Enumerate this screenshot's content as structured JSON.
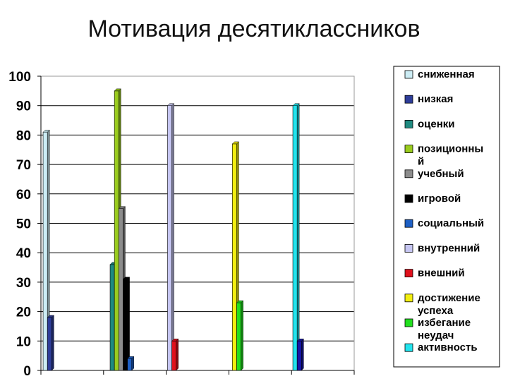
{
  "chart_data": {
    "type": "bar",
    "title": "Мотивация десятиклассников",
    "xlabel": "",
    "ylabel": "",
    "ylim": [
      0,
      100
    ],
    "yticks": [
      0,
      10,
      20,
      30,
      40,
      50,
      60,
      70,
      80,
      90,
      100
    ],
    "grid": true,
    "legend_position": "right",
    "categories": [
      "",
      "",
      "",
      "",
      ""
    ],
    "series": [
      {
        "name": "сниженная",
        "color": "#ccecf4",
        "values": [
          81,
          null,
          null,
          null,
          null
        ]
      },
      {
        "name": "низкая",
        "color": "#2e3d99",
        "values": [
          18,
          null,
          null,
          null,
          null
        ]
      },
      {
        "name": "оценки",
        "color": "#1f8a80",
        "values": [
          null,
          36,
          null,
          null,
          null
        ]
      },
      {
        "name": "позиционный",
        "color": "#9acc1e",
        "values": [
          null,
          95,
          null,
          null,
          null
        ]
      },
      {
        "name": "учебный",
        "color": "#8c8c8c",
        "values": [
          null,
          55,
          null,
          null,
          null
        ]
      },
      {
        "name": "игровой",
        "color": "#000000",
        "values": [
          null,
          31,
          null,
          null,
          null
        ]
      },
      {
        "name": "социальный",
        "color": "#1e5fc4",
        "values": [
          null,
          4,
          null,
          null,
          null
        ]
      },
      {
        "name": "внутренний",
        "color": "#c6c6f2",
        "values": [
          null,
          null,
          90,
          null,
          null
        ]
      },
      {
        "name": "внешний",
        "color": "#e0101c",
        "values": [
          null,
          null,
          10,
          null,
          null
        ]
      },
      {
        "name": "достижение успеха",
        "color": "#f2ee10",
        "values": [
          null,
          null,
          null,
          77,
          null
        ]
      },
      {
        "name": "избегание неудач",
        "color": "#22e01e",
        "values": [
          null,
          null,
          null,
          23,
          null
        ]
      },
      {
        "name": "активность",
        "color": "#22e4ee",
        "values": [
          null,
          null,
          null,
          null,
          90
        ]
      }
    ],
    "extra_series": [
      {
        "name": "",
        "color": "#1515a6",
        "values": [
          null,
          null,
          null,
          null,
          10
        ]
      }
    ],
    "legend_labels": [
      [
        "сниженная"
      ],
      [
        "низкая"
      ],
      [
        "оценки"
      ],
      [
        "позиционны",
        "й"
      ],
      [
        "учебный"
      ],
      [
        "игровой"
      ],
      [
        "социальный"
      ],
      [
        "внутренний"
      ],
      [
        "внешний"
      ],
      [
        "достижение",
        "успеха"
      ],
      [
        "избегание",
        "неудач"
      ],
      [
        "активность"
      ]
    ]
  }
}
